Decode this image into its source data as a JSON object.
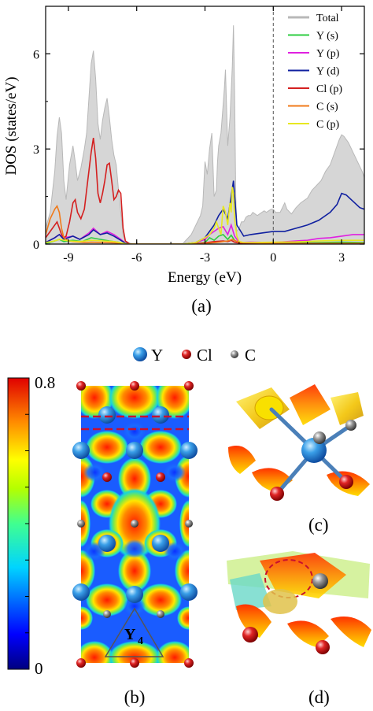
{
  "chart_data": {
    "type": "area",
    "xlabel": "Energy (eV)",
    "ylabel": "DOS (states/eV)",
    "xlim": [
      -10,
      4
    ],
    "ylim": [
      0,
      7.5
    ],
    "xticks": [
      -9,
      -6,
      -3,
      0,
      3
    ],
    "xtick_labels": [
      "-9",
      "-6",
      "-3",
      "0",
      "3"
    ],
    "yticks": [
      0,
      3,
      6
    ],
    "ytick_labels": [
      "0",
      "3",
      "6"
    ],
    "fermi_line": 0,
    "legend_position": "top-right",
    "series": [
      {
        "name": "Total",
        "color": "#b8b8b8",
        "filled": true,
        "x": [
          -10,
          -9.8,
          -9.6,
          -9.5,
          -9.4,
          -9.3,
          -9.2,
          -9.1,
          -8.95,
          -8.8,
          -8.7,
          -8.6,
          -8.45,
          -8.3,
          -8.2,
          -8.1,
          -8.0,
          -7.9,
          -7.8,
          -7.7,
          -7.6,
          -7.5,
          -7.4,
          -7.3,
          -7.2,
          -7.1,
          -7.0,
          -6.9,
          -6.8,
          -6.7,
          -6.6,
          -6.5,
          -6.3,
          -6.1,
          -5.0,
          -4.0,
          -3.8,
          -3.6,
          -3.4,
          -3.2,
          -3.1,
          -3.0,
          -2.9,
          -2.8,
          -2.7,
          -2.6,
          -2.5,
          -2.45,
          -2.4,
          -2.3,
          -2.2,
          -2.15,
          -2.1,
          -2.0,
          -1.9,
          -1.8,
          -1.75,
          -1.7,
          -1.65,
          -1.6,
          -1.5,
          -1.4,
          -1.3,
          -1.2,
          -1.1,
          -1.0,
          -0.9,
          -0.8,
          -0.7,
          -0.6,
          -0.5,
          -0.4,
          -0.3,
          -0.2,
          -0.1,
          0,
          0.1,
          0.3,
          0.5,
          0.6,
          0.8,
          1.0,
          1.2,
          1.5,
          1.7,
          1.9,
          2.1,
          2.3,
          2.5,
          2.7,
          2.9,
          3.0,
          3.1,
          3.3,
          3.5,
          3.7,
          3.9,
          4.0
        ],
        "y": [
          0.5,
          1.0,
          2.3,
          3.4,
          4.0,
          3.5,
          2.0,
          1.4,
          2.5,
          3.1,
          2.6,
          2.0,
          2.4,
          3.0,
          3.5,
          4.6,
          5.7,
          6.1,
          5.2,
          3.8,
          3.3,
          3.9,
          4.3,
          4.6,
          4.0,
          3.3,
          2.8,
          2.5,
          1.7,
          1.0,
          0.3,
          0.1,
          0.03,
          0,
          0,
          0,
          0.15,
          0.3,
          0.6,
          0.9,
          1.2,
          2.6,
          2.2,
          3.0,
          3.5,
          1.5,
          1.7,
          2.6,
          3.1,
          3.5,
          4.4,
          4.9,
          5.5,
          3.1,
          4.0,
          5.6,
          6.9,
          4.8,
          1.5,
          0.4,
          0.5,
          0.7,
          0.7,
          0.85,
          0.9,
          0.9,
          1.0,
          0.95,
          0.9,
          0.95,
          1.0,
          1.05,
          1.0,
          1.05,
          1.1,
          1.1,
          1.0,
          1.0,
          1.3,
          1.1,
          0.95,
          1.15,
          1.3,
          1.45,
          1.7,
          1.85,
          2.0,
          2.3,
          2.5,
          2.9,
          3.3,
          3.45,
          3.4,
          3.2,
          2.9,
          2.6,
          2.3,
          2.1
        ]
      },
      {
        "name": "Y (s)",
        "color": "#2ecc40",
        "x": [
          -10,
          -9.6,
          -9.4,
          -9.2,
          -8.8,
          -8.4,
          -8.0,
          -7.6,
          -7.2,
          -6.8,
          -6.6,
          -6.3,
          -4.0,
          -3.4,
          -3.0,
          -2.8,
          -2.6,
          -2.4,
          -2.2,
          -2.0,
          -1.85,
          -1.7,
          -1.5,
          -1.0,
          0,
          1.0,
          2.0,
          3.0,
          4.0
        ],
        "y": [
          0.02,
          0.1,
          0.15,
          0.08,
          0.12,
          0.08,
          0.2,
          0.15,
          0.1,
          0.06,
          0.02,
          0,
          0,
          0.02,
          0.05,
          0.2,
          0.12,
          0.25,
          0.3,
          0.15,
          0.28,
          0.12,
          0.03,
          0.03,
          0.03,
          0.04,
          0.05,
          0.06,
          0.05
        ]
      },
      {
        "name": "Y (p)",
        "color": "#e020e0",
        "x": [
          -10,
          -9.6,
          -9.4,
          -9.2,
          -8.8,
          -8.5,
          -8.1,
          -7.9,
          -7.6,
          -7.3,
          -7.0,
          -6.7,
          -6.5,
          -6.3,
          -4.0,
          -3.4,
          -3.0,
          -2.8,
          -2.6,
          -2.4,
          -2.2,
          -2.0,
          -1.85,
          -1.7,
          -1.5,
          -1.0,
          0,
          1.0,
          1.5,
          2.0,
          2.5,
          3.0,
          3.5,
          4.0
        ],
        "y": [
          0.05,
          0.2,
          0.3,
          0.2,
          0.25,
          0.15,
          0.35,
          0.5,
          0.3,
          0.4,
          0.3,
          0.15,
          0.03,
          0,
          0,
          0.05,
          0.15,
          0.3,
          0.4,
          0.5,
          0.55,
          0.3,
          0.6,
          0.25,
          0.05,
          0.06,
          0.05,
          0.1,
          0.12,
          0.18,
          0.2,
          0.25,
          0.3,
          0.3
        ]
      },
      {
        "name": "Y (d)",
        "color": "#1020a0",
        "x": [
          -10,
          -9.6,
          -9.4,
          -9.2,
          -8.8,
          -8.5,
          -8.1,
          -7.9,
          -7.6,
          -7.3,
          -7.0,
          -6.7,
          -6.5,
          -6.3,
          -4.0,
          -3.4,
          -3.0,
          -2.8,
          -2.6,
          -2.4,
          -2.2,
          -2.0,
          -1.85,
          -1.75,
          -1.6,
          -1.3,
          -1.0,
          -0.5,
          0,
          0.5,
          1.0,
          1.5,
          2.0,
          2.5,
          2.8,
          3.0,
          3.2,
          3.5,
          3.8,
          4.0
        ],
        "y": [
          0.05,
          0.2,
          0.3,
          0.15,
          0.25,
          0.15,
          0.3,
          0.45,
          0.3,
          0.35,
          0.25,
          0.12,
          0.03,
          0,
          0,
          0.05,
          0.2,
          0.4,
          0.6,
          0.9,
          1.1,
          0.8,
          1.5,
          2.0,
          0.6,
          0.25,
          0.3,
          0.35,
          0.4,
          0.4,
          0.5,
          0.6,
          0.75,
          1.0,
          1.25,
          1.6,
          1.55,
          1.35,
          1.15,
          1.1
        ]
      },
      {
        "name": "Cl (p)",
        "color": "#d42020",
        "x": [
          -10,
          -9.8,
          -9.6,
          -9.5,
          -9.4,
          -9.3,
          -9.2,
          -9.1,
          -8.95,
          -8.8,
          -8.7,
          -8.6,
          -8.45,
          -8.3,
          -8.15,
          -8.0,
          -7.9,
          -7.8,
          -7.7,
          -7.6,
          -7.5,
          -7.4,
          -7.3,
          -7.2,
          -7.1,
          -7.0,
          -6.9,
          -6.8,
          -6.7,
          -6.6,
          -6.5,
          -6.3,
          -4.0,
          -3.4,
          -3.0,
          -2.6,
          -2.2,
          -2.0,
          -1.85,
          -1.7,
          -1.5,
          0,
          4.0
        ],
        "y": [
          0.2,
          0.4,
          0.6,
          0.7,
          0.5,
          0.3,
          0.2,
          0.25,
          0.7,
          1.3,
          1.4,
          1.0,
          0.8,
          1.1,
          2.0,
          2.9,
          3.35,
          2.7,
          1.6,
          1.3,
          1.6,
          2.0,
          2.5,
          2.55,
          2.0,
          1.4,
          1.5,
          1.7,
          1.6,
          0.5,
          0.1,
          0,
          0,
          0.02,
          0.04,
          0.08,
          0.1,
          0.08,
          0.12,
          0.06,
          0.03,
          0.02,
          0.02
        ]
      },
      {
        "name": "C (s)",
        "color": "#f07a1a",
        "x": [
          -10,
          -9.8,
          -9.6,
          -9.5,
          -9.4,
          -9.3,
          -9.2,
          -9.0,
          -8.8,
          -8.5,
          -8.2,
          -8.0,
          -7.5,
          -7.0,
          -6.6,
          -6.4,
          -4.0,
          -3.0,
          -2.5,
          -2.0,
          -1.8,
          -1.5,
          0,
          4.0
        ],
        "y": [
          0.3,
          0.8,
          1.1,
          1.2,
          1.0,
          0.5,
          0.2,
          0.1,
          0.08,
          0.06,
          0.05,
          0.06,
          0.05,
          0.04,
          0.02,
          0,
          0,
          0.02,
          0.05,
          0.1,
          0.15,
          0.05,
          0.02,
          0.02
        ]
      },
      {
        "name": "C (p)",
        "color": "#e8e820",
        "x": [
          -10,
          -9.6,
          -9.4,
          -9.0,
          -8.5,
          -8.0,
          -7.5,
          -7.0,
          -6.6,
          -6.4,
          -4.0,
          -3.4,
          -3.0,
          -2.8,
          -2.6,
          -2.5,
          -2.4,
          -2.3,
          -2.2,
          -2.1,
          -2.0,
          -1.9,
          -1.85,
          -1.8,
          -1.75,
          -1.7,
          -1.6,
          -1.5,
          -1.3,
          -1.0,
          0,
          1.0,
          2.0,
          3.0,
          4.0
        ],
        "y": [
          0.05,
          0.1,
          0.15,
          0.1,
          0.08,
          0.12,
          0.1,
          0.08,
          0.03,
          0,
          0,
          0.05,
          0.2,
          0.3,
          0.5,
          0.7,
          0.5,
          0.3,
          1.2,
          1.0,
          0.6,
          1.3,
          1.0,
          1.8,
          1.6,
          0.8,
          0.25,
          0.08,
          0.05,
          0.05,
          0.06,
          0.07,
          0.1,
          0.12,
          0.12
        ]
      }
    ]
  },
  "panel_labels": {
    "a": "(a)",
    "b": "(b)",
    "c": "(c)",
    "d": "(d)"
  },
  "atom_legend": {
    "y": "Y",
    "cl": "Cl",
    "c": "C"
  },
  "colorbar": {
    "max_label": "0.8",
    "min_label": "0"
  },
  "elf_map": {
    "cluster_label": "Y",
    "cluster_subscript": "4"
  }
}
